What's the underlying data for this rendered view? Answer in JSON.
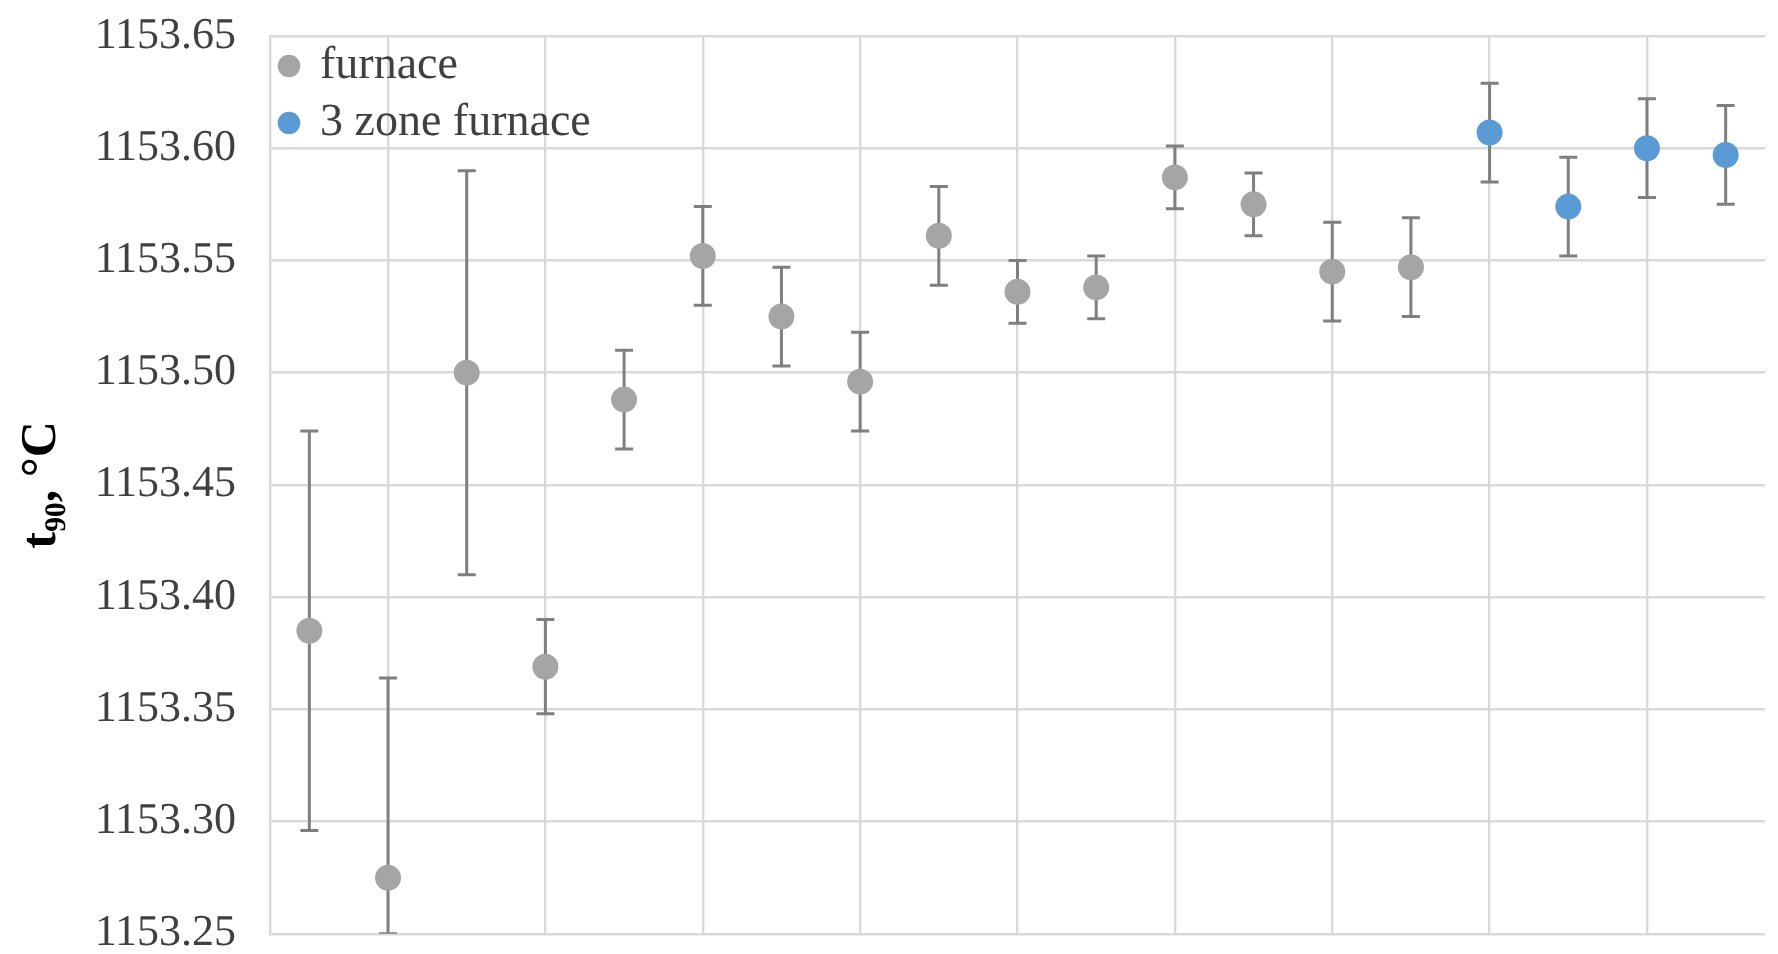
{
  "chart_data": {
    "type": "scatter",
    "ylabel": "t₉₀, °C",
    "categories": [
      null,
      null,
      null,
      null,
      null,
      null,
      null,
      null,
      null,
      null,
      null,
      null,
      null,
      null,
      null,
      null,
      null,
      null,
      null
    ],
    "ylim": [
      1153.25,
      1153.65
    ],
    "yticks": [
      {
        "value": 1153.25,
        "label": "1153.25"
      },
      {
        "value": 1153.3,
        "label": "1153.30"
      },
      {
        "value": 1153.35,
        "label": "1153.35"
      },
      {
        "value": 1153.4,
        "label": "1153.40"
      },
      {
        "value": 1153.45,
        "label": "1153.45"
      },
      {
        "value": 1153.5,
        "label": "1153.50"
      },
      {
        "value": 1153.55,
        "label": "1153.55"
      },
      {
        "value": 1153.6,
        "label": "1153.60"
      },
      {
        "value": 1153.65,
        "label": "1153.65"
      }
    ],
    "grid": true,
    "legend": "top left",
    "marker": "circle",
    "series": [
      {
        "name": "furnace",
        "color": "#a5a5a5",
        "values": [
          1153.385,
          1153.275,
          1153.5,
          1153.369,
          1153.488,
          1153.552,
          1153.525,
          1153.496,
          1153.561,
          1153.536,
          1153.538,
          1153.587,
          1153.575,
          1153.545,
          1153.547,
          null,
          null,
          null,
          null
        ],
        "errors": [
          0.089,
          [
            1153.25,
            1153.364
          ],
          0.09,
          0.021,
          0.022,
          0.022,
          0.022,
          0.022,
          0.022,
          0.014,
          0.014,
          0.014,
          0.014,
          0.022,
          0.022,
          null,
          null,
          null,
          null
        ]
      },
      {
        "name": "3 zone furnace",
        "color": "#5b9bd5",
        "values": [
          null,
          null,
          null,
          null,
          null,
          null,
          null,
          null,
          null,
          null,
          null,
          null,
          null,
          null,
          null,
          1153.607,
          1153.574,
          1153.6,
          1153.597
        ],
        "errors": [
          null,
          null,
          null,
          null,
          null,
          null,
          null,
          null,
          null,
          null,
          null,
          null,
          null,
          null,
          null,
          0.022,
          0.022,
          0.022,
          0.022
        ]
      }
    ]
  }
}
